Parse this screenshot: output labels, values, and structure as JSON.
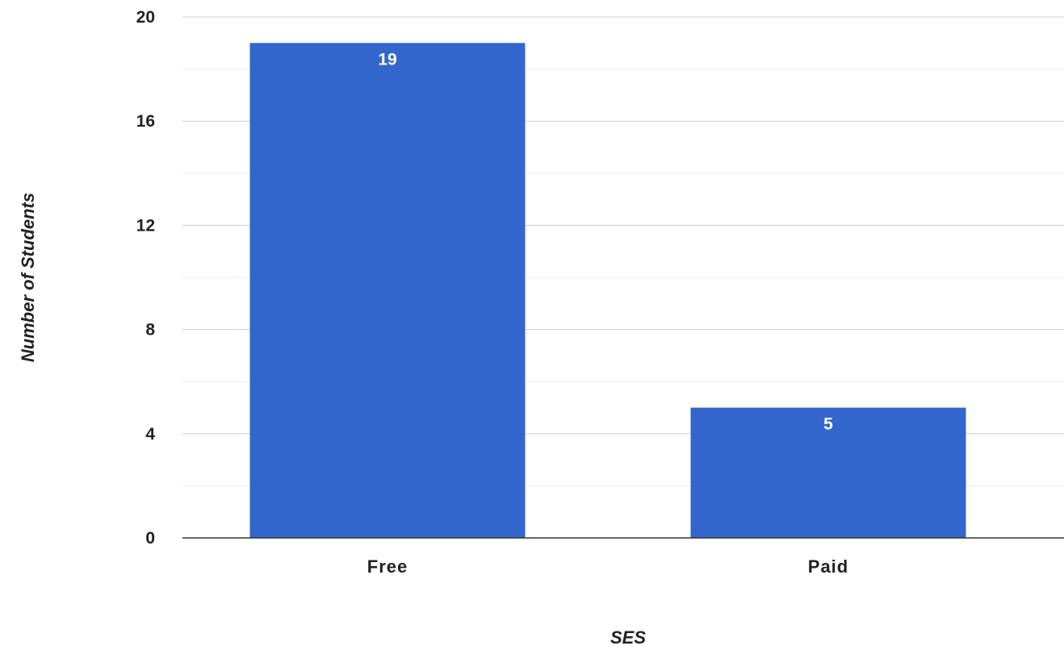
{
  "chart_data": {
    "type": "bar",
    "categories": [
      "Free",
      "Paid"
    ],
    "values": [
      19,
      5
    ],
    "data_labels": [
      "19",
      "5"
    ],
    "title": "",
    "xlabel": "SES",
    "ylabel": "Number of Students",
    "ylim": [
      0,
      20
    ],
    "yticks": [
      0,
      4,
      8,
      12,
      16,
      20
    ],
    "ytick_labels": [
      "0",
      "4",
      "8",
      "12",
      "16",
      "20"
    ],
    "minor_gridlines": true,
    "grid": true,
    "legend": "none",
    "bar_color": "#3366cc",
    "data_label_color": "#ffffff"
  }
}
